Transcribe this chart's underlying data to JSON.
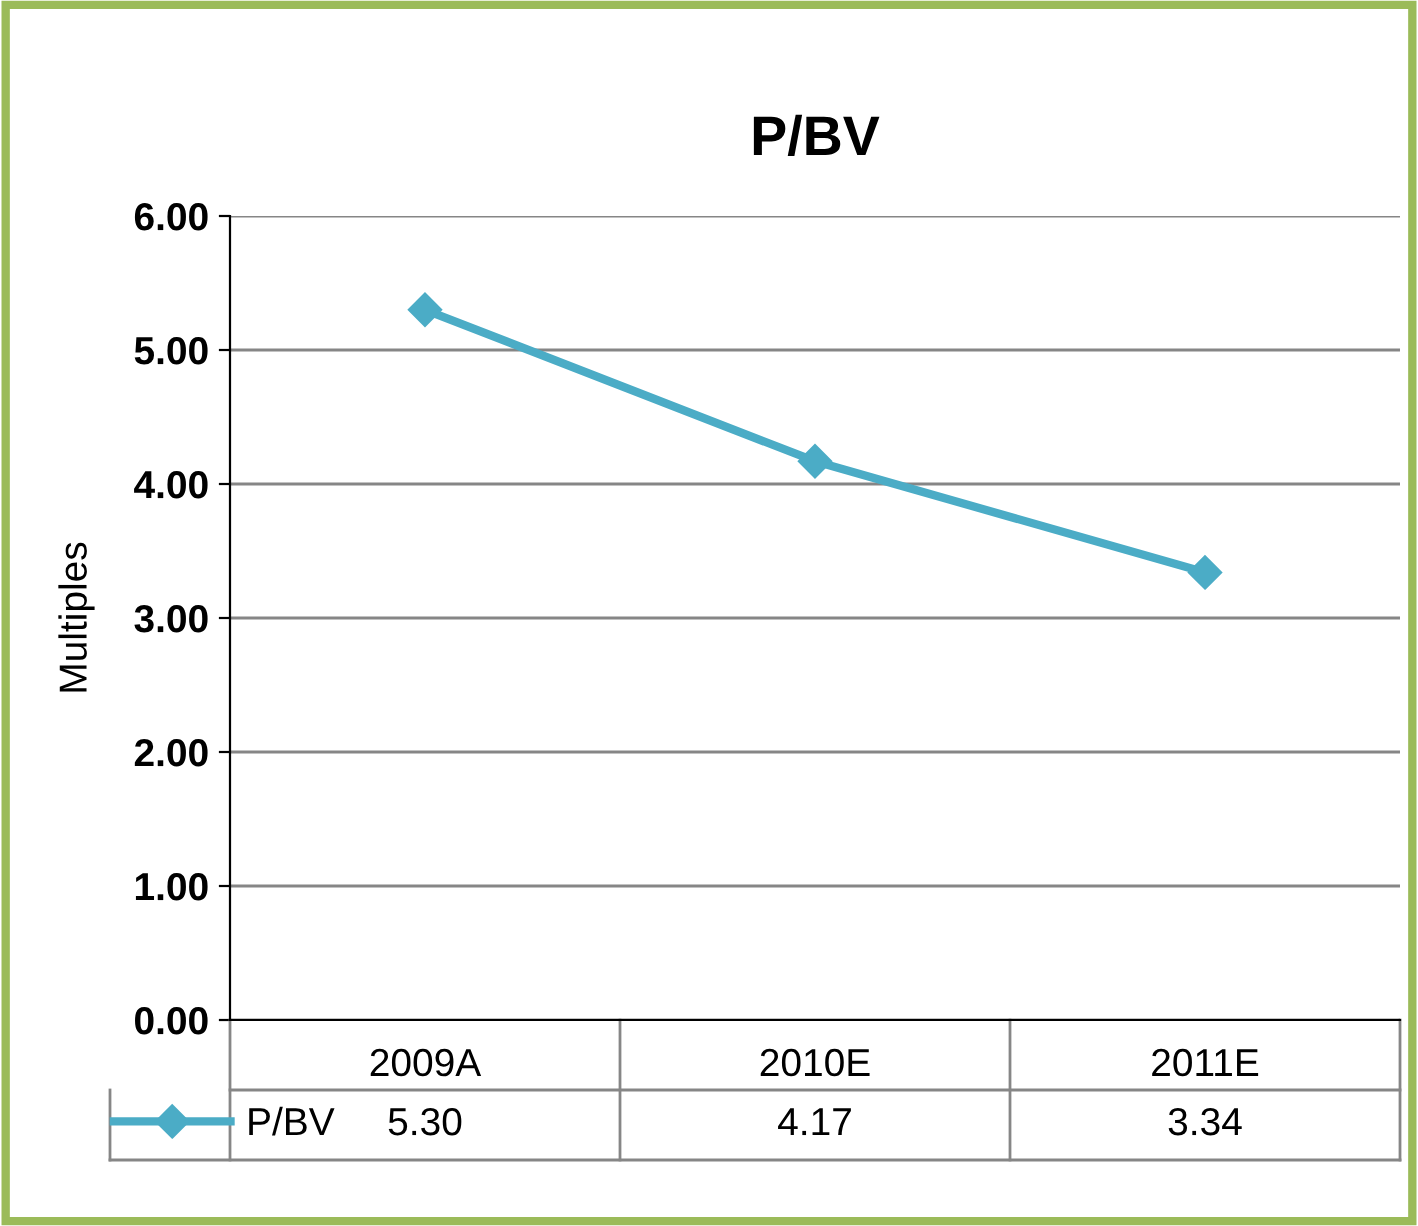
{
  "chart_data": {
    "type": "line",
    "title": "P/BV",
    "ylabel": "Multiples",
    "categories": [
      "2009A",
      "2010E",
      "2011E"
    ],
    "series": [
      {
        "name": "P/BV",
        "color": "#4bacc6",
        "values": [
          5.3,
          4.17,
          3.34
        ]
      }
    ],
    "ylim": [
      0,
      6
    ],
    "yticks": [
      {
        "value": 0,
        "label": "0.00"
      },
      {
        "value": 1,
        "label": "1.00"
      },
      {
        "value": 2,
        "label": "2.00"
      },
      {
        "value": 3,
        "label": "3.00"
      },
      {
        "value": 4,
        "label": "4.00"
      },
      {
        "value": 5,
        "label": "5.00"
      },
      {
        "value": 6,
        "label": "6.00"
      }
    ],
    "value_labels": [
      [
        "5.30",
        "4.17",
        "3.34"
      ]
    ],
    "grid": "y",
    "legend": "bottom left",
    "marker": "diamond",
    "line_style": "solid"
  }
}
